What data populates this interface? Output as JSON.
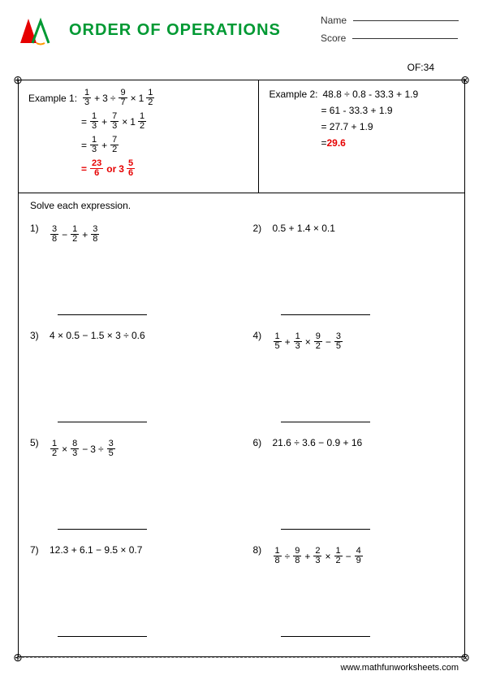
{
  "header": {
    "title": "ORDER OF OPERATIONS",
    "name_label": "Name",
    "score_label": "Score",
    "of_label": "OF:34",
    "logo_colors": {
      "red": "#e60000",
      "green": "#009933",
      "orange": "#ff9900"
    }
  },
  "corners": {
    "tl": "⊕",
    "tr": "⊗",
    "bl": "⊕",
    "br": "⊗"
  },
  "example1": {
    "label": "Example 1:",
    "line1_parts": [
      "1",
      "3",
      "+",
      "3",
      "÷",
      "9",
      "7",
      "×",
      "1",
      "1",
      "2"
    ],
    "line2_parts": [
      "=",
      "1",
      "3",
      "+",
      "7",
      "3",
      "×",
      "1",
      "1",
      "2"
    ],
    "line3_parts": [
      "=",
      "1",
      "3",
      "+",
      "7",
      "2"
    ],
    "answer_parts": [
      "=",
      "23",
      "6",
      "or",
      "3",
      "5",
      "6"
    ]
  },
  "example2": {
    "label": "Example 2:",
    "line1": "48.8 ÷ 0.8 - 33.3 + 1.9",
    "line2": "= 61 - 33.3 + 1.9",
    "line3": "= 27.7 + 1.9",
    "answer_prefix": "= ",
    "answer": "29.6"
  },
  "instruction": "Solve each expression.",
  "problems": [
    {
      "num": "1)",
      "type": "frac",
      "parts": [
        "3",
        "8",
        "−",
        "1",
        "2",
        "+",
        "3",
        "8"
      ]
    },
    {
      "num": "2)",
      "type": "text",
      "text": "0.5 + 1.4 × 0.1"
    },
    {
      "num": "3)",
      "type": "text",
      "text": "4 × 0.5 − 1.5 × 3 ÷ 0.6"
    },
    {
      "num": "4)",
      "type": "frac",
      "parts": [
        "1",
        "5",
        "+",
        "1",
        "3",
        "×",
        "9",
        "2",
        "−",
        "3",
        "5"
      ]
    },
    {
      "num": "5)",
      "type": "frac",
      "parts": [
        "1",
        "2",
        "×",
        "8",
        "3",
        "−",
        "3",
        "÷",
        "3",
        "5"
      ]
    },
    {
      "num": "6)",
      "type": "text",
      "text": "21.6 ÷ 3.6 − 0.9 + 16"
    },
    {
      "num": "7)",
      "type": "text",
      "text": "12.3 + 6.1 − 9.5 × 0.7"
    },
    {
      "num": "8)",
      "type": "frac",
      "parts": [
        "1",
        "8",
        "÷",
        "9",
        "8",
        "+",
        "2",
        "3",
        "×",
        "1",
        "2",
        "−",
        "4",
        "9"
      ]
    }
  ],
  "footer": "www.mathfunworksheets.com",
  "colors": {
    "title": "#009933",
    "answer": "#e60000",
    "text": "#000000",
    "border": "#000000",
    "background": "#ffffff"
  }
}
